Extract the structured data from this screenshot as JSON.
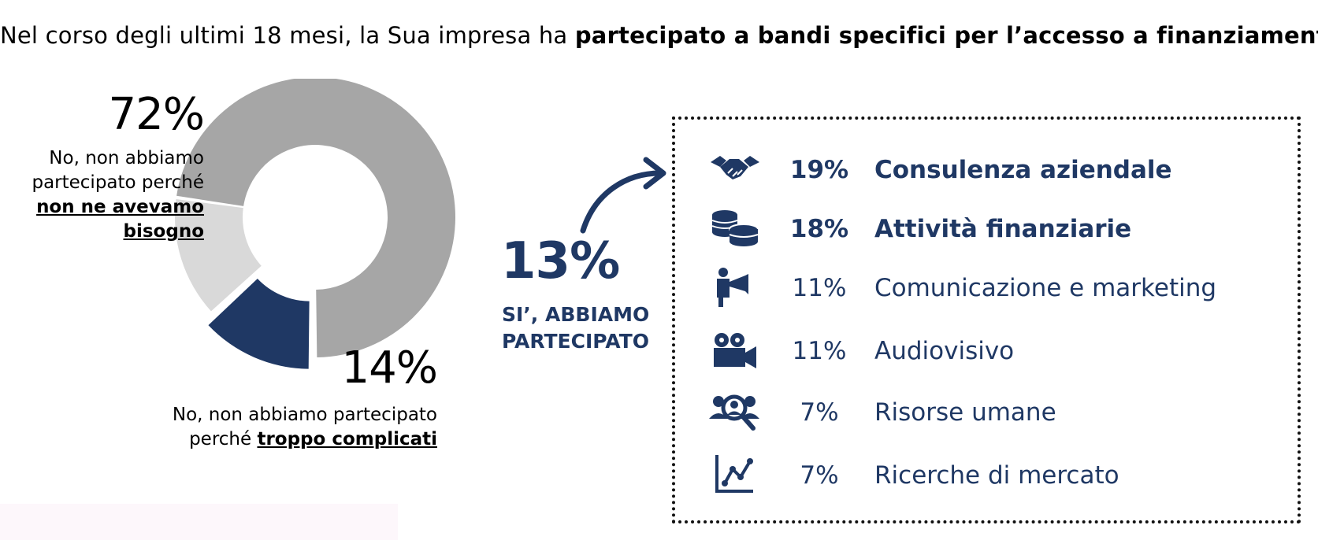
{
  "title": {
    "pre": "Nel corso degli ultimi 18 mesi, la Sua impresa ha ",
    "bold": "partecipato a bandi specifici per l’accesso a finanziamenti",
    "post": "?"
  },
  "chart_data": {
    "type": "pie",
    "variant": "donut",
    "slices": [
      {
        "label": "No, non abbiamo partecipato perché non ne avevamo bisogno",
        "value": 72,
        "color": "#a6a6a6"
      },
      {
        "label": "SI’, ABBIAMO PARTECIPATO",
        "value": 13,
        "color": "#1f3864",
        "exploded": true
      },
      {
        "label": "No, non abbiamo partecipato perché troppo complicati",
        "value": 14,
        "color": "#d9d9d9"
      }
    ]
  },
  "labels": {
    "no_need": {
      "pct": "72%",
      "line1": "No, non abbiamo",
      "line2": "partecipato perché",
      "emph1": "non ne avevamo",
      "emph2": "bisogno"
    },
    "too_complicated": {
      "pct": "14%",
      "line1": "No, non abbiamo partecipato",
      "line2_pre": "perché ",
      "emph": "troppo complicati"
    },
    "yes": {
      "pct": "13%",
      "line1": "SI’, ABBIAMO",
      "line2": "PARTECIPATO"
    }
  },
  "breakdown": [
    {
      "icon": "handshake-icon",
      "pct": "19%",
      "name": "Consulenza aziendale",
      "bold": true
    },
    {
      "icon": "coins-icon",
      "pct": "18%",
      "name": "Attività finanziarie",
      "bold": true
    },
    {
      "icon": "megaphone-person-icon",
      "pct": "11%",
      "name": "Comunicazione e marketing",
      "bold": false
    },
    {
      "icon": "movie-camera-icon",
      "pct": "11%",
      "name": "Audiovisivo",
      "bold": false
    },
    {
      "icon": "people-search-icon",
      "pct": "7%",
      "name": "Risorse umane",
      "bold": false
    },
    {
      "icon": "line-chart-icon",
      "pct": "7%",
      "name": "Ricerche di mercato",
      "bold": false
    }
  ],
  "colors": {
    "accent": "#1f3864",
    "grey_dark": "#a6a6a6",
    "grey_light": "#d9d9d9"
  }
}
